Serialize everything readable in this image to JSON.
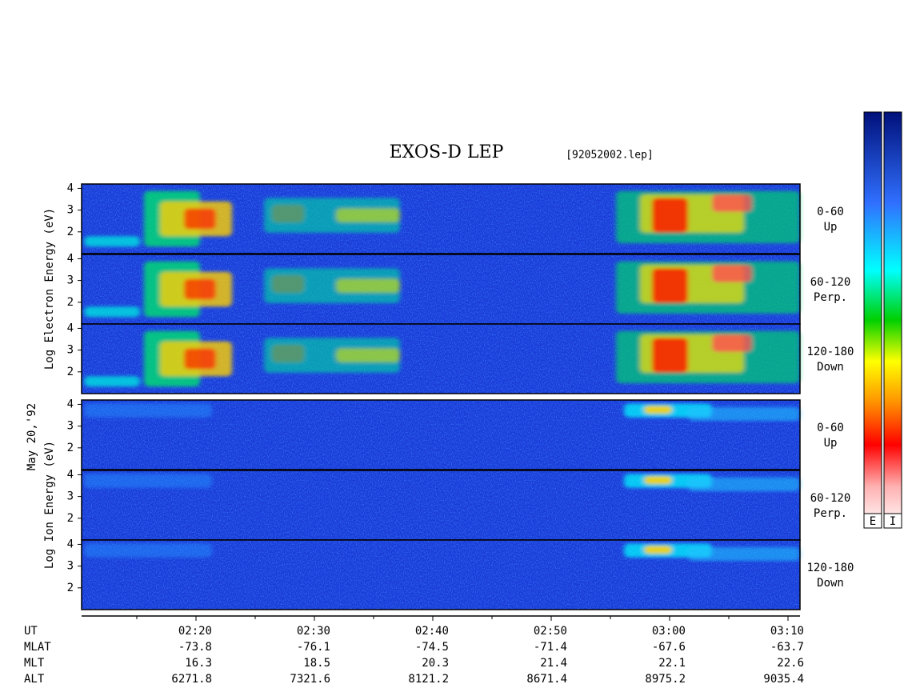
{
  "title": "EXOS-D LEP",
  "file": "[92052002.lep]",
  "date": "May 20,'92",
  "electron_label": "Log  Electron  Energy  (eV)",
  "ion_label": "Log  Ion  Energy  (eV)",
  "ylim": [
    1,
    4.2
  ],
  "yticks": [
    2,
    3,
    4
  ],
  "panels": [
    {
      "angle": "0-60",
      "dir": "Up"
    },
    {
      "angle": "60-120",
      "dir": "Perp."
    },
    {
      "angle": "120-180",
      "dir": "Down"
    },
    {
      "angle": "0-60",
      "dir": "Up"
    },
    {
      "angle": "60-120",
      "dir": "Perp."
    },
    {
      "angle": "120-180",
      "dir": "Down"
    }
  ],
  "colorbar_labels": [
    "E",
    "I"
  ],
  "axis_rows": [
    {
      "name": "UT",
      "values": [
        "02:20",
        "02:30",
        "02:40",
        "02:50",
        "03:00",
        "03:10"
      ]
    },
    {
      "name": "MLAT",
      "values": [
        -73.8,
        -76.1,
        -74.5,
        -71.4,
        -67.6,
        -63.7
      ]
    },
    {
      "name": "MLT",
      "values": [
        16.3,
        18.5,
        20.3,
        21.4,
        22.1,
        22.6
      ]
    },
    {
      "name": "ALT",
      "values": [
        6271.8,
        7321.6,
        8121.2,
        8671.4,
        8975.2,
        9035.4
      ]
    }
  ]
}
